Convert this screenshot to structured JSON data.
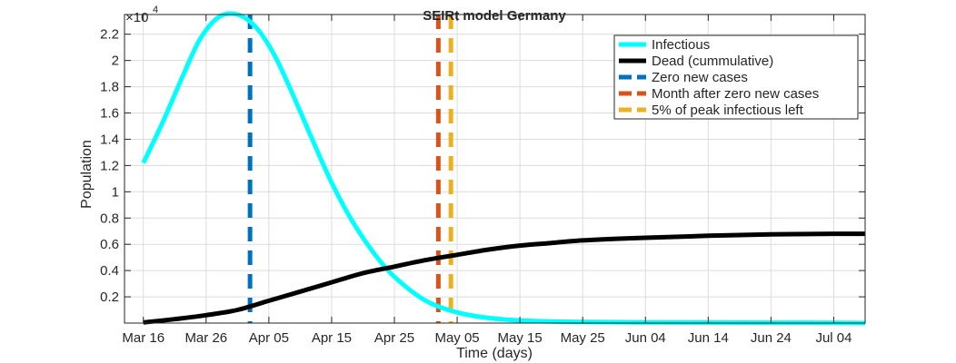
{
  "chart_data": {
    "type": "line",
    "title": "SEIRt model Germany",
    "xlabel": "Time (days)",
    "ylabel": "Population",
    "y_multiplier": {
      "base": "×10",
      "exponent": "4"
    },
    "x_tick_labels": [
      "Mar 16",
      "Mar 26",
      "Apr 05",
      "Apr 15",
      "Apr 25",
      "May 05",
      "May 15",
      "May 25",
      "Jun 04",
      "Jun 14",
      "Jun 24",
      "Jul 04"
    ],
    "y_tick_labels": [
      "0.2",
      "0.4",
      "0.6",
      "0.8",
      "1",
      "1.2",
      "1.4",
      "1.6",
      "1.8",
      "2",
      "2.2"
    ],
    "xlim": [
      "Mar 13",
      "Jul 09"
    ],
    "ylim": [
      0,
      2.35
    ],
    "grid": true,
    "legend_position": "top-right",
    "series": [
      {
        "name": "Infectious",
        "color": "#00ffff",
        "style": "solid",
        "x": [
          "Mar 16",
          "Mar 19",
          "Mar 22",
          "Mar 25",
          "Mar 28",
          "Mar 31",
          "Apr 03",
          "Apr 06",
          "Apr 09",
          "Apr 12",
          "Apr 15",
          "Apr 18",
          "Apr 21",
          "Apr 24",
          "Apr 27",
          "Apr 30",
          "May 03",
          "May 06",
          "May 09",
          "May 12",
          "May 15",
          "May 20",
          "May 25",
          "Jun 04",
          "Jun 14",
          "Jun 24",
          "Jul 04",
          "Jul 09"
        ],
        "y": [
          1.22,
          1.52,
          1.85,
          2.16,
          2.33,
          2.35,
          2.25,
          2.03,
          1.72,
          1.39,
          1.07,
          0.8,
          0.58,
          0.4,
          0.27,
          0.17,
          0.11,
          0.07,
          0.045,
          0.03,
          0.02,
          0.012,
          0.008,
          0.005,
          0.004,
          0.003,
          0.002,
          0.0
        ]
      },
      {
        "name": "Dead (cummulative)",
        "color": "#000000",
        "style": "solid",
        "x": [
          "Mar 16",
          "Mar 21",
          "Mar 26",
          "Mar 31",
          "Apr 05",
          "Apr 10",
          "Apr 15",
          "Apr 20",
          "Apr 25",
          "Apr 30",
          "May 05",
          "May 10",
          "May 15",
          "May 20",
          "May 25",
          "Jun 04",
          "Jun 14",
          "Jun 24",
          "Jul 04",
          "Jul 09"
        ],
        "y": [
          0.005,
          0.03,
          0.06,
          0.1,
          0.17,
          0.24,
          0.31,
          0.38,
          0.43,
          0.48,
          0.52,
          0.56,
          0.59,
          0.61,
          0.63,
          0.65,
          0.665,
          0.675,
          0.68,
          0.68
        ]
      }
    ],
    "vertical_lines": [
      {
        "name": "Zero new cases",
        "color": "#0072bd",
        "style": "dashed",
        "x": "Apr 02"
      },
      {
        "name": "Month after zero new cases",
        "color": "#d95319",
        "style": "dashed",
        "x": "May 02"
      },
      {
        "name": "5% of peak infectious left",
        "color": "#edb120",
        "style": "dashed",
        "x": "May 04"
      }
    ]
  }
}
